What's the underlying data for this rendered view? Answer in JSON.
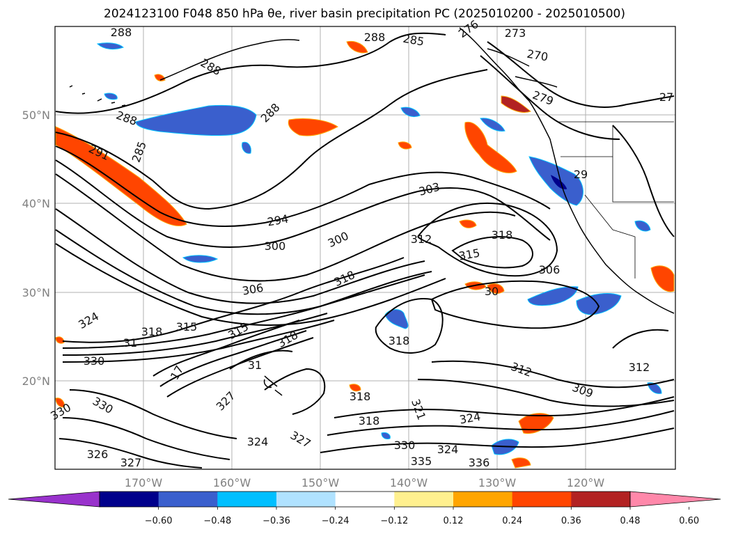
{
  "title": "2024123100 F048 850 hPa θe, river basin precipitation PC (2025010200 - 2025010500)",
  "lat_labels": [
    {
      "text": "50°N"
    },
    {
      "text": "40°N"
    },
    {
      "text": "30°N"
    },
    {
      "text": "20°N"
    }
  ],
  "lon_labels": [
    {
      "text": "170°W"
    },
    {
      "text": "160°W"
    },
    {
      "text": "150°W"
    },
    {
      "text": "140°W"
    },
    {
      "text": "130°W"
    },
    {
      "text": "120°W"
    }
  ],
  "contour_labels": [
    "288",
    "288",
    "285",
    "276",
    "273",
    "270",
    "279",
    "27",
    "288",
    "288",
    "291",
    "285",
    "288",
    "29",
    "303",
    "294",
    "300",
    "300",
    "312",
    "318",
    "315",
    "306",
    "318",
    "30",
    "306",
    "324",
    "318",
    "315",
    "31",
    "315",
    "318",
    "330",
    "318",
    "17",
    "31",
    "318",
    "312",
    "309",
    "312",
    "327",
    "330",
    "330",
    "321",
    "324",
    "318",
    "324",
    "327",
    "330",
    "324",
    "336",
    "335",
    "326",
    "327"
  ],
  "colorbar": {
    "colors": [
      "#9932cc",
      "#00008b",
      "#3a5fcd",
      "#00bfff",
      "#b0e2ff",
      "#ffffff",
      "#fff08f",
      "#ffa500",
      "#ff4500",
      "#b22222",
      "#ff88aa"
    ],
    "tick_labels": [
      "−0.60",
      "−0.48",
      "−0.36",
      "−0.24",
      "−0.12",
      "0.12",
      "0.24",
      "0.36",
      "0.48",
      "0.60"
    ]
  }
}
